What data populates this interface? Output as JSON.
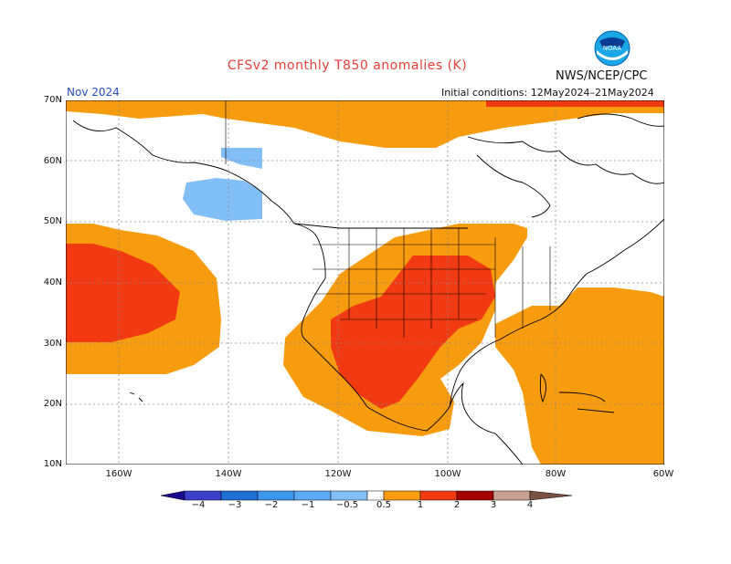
{
  "header": {
    "title": "CFSv2 monthly T850 anomalies (K)",
    "org": "NWS/NCEP/CPC",
    "month": "Nov 2024",
    "initial_conditions": "Initial conditions: 12May2024–21May2024",
    "logo_text": "NOAA"
  },
  "axes": {
    "lat_labels": [
      "70N",
      "60N",
      "50N",
      "40N",
      "30N",
      "20N",
      "10N"
    ],
    "lon_labels": [
      "160W",
      "140W",
      "120W",
      "100W",
      "80W",
      "60W"
    ]
  },
  "colorbar": {
    "labels": [
      "−4",
      "−3",
      "−2",
      "−1",
      "−0.5",
      "0.5",
      "1",
      "2",
      "3",
      "4"
    ],
    "colors": [
      "#1a0a8c",
      "#3a3fcc",
      "#1f6fd6",
      "#3c96ee",
      "#82bff7",
      "#ffffff",
      "#f79c0f",
      "#f13a12",
      "#b81010",
      "#a50000",
      "#c8a090",
      "#7a5040"
    ]
  }
}
